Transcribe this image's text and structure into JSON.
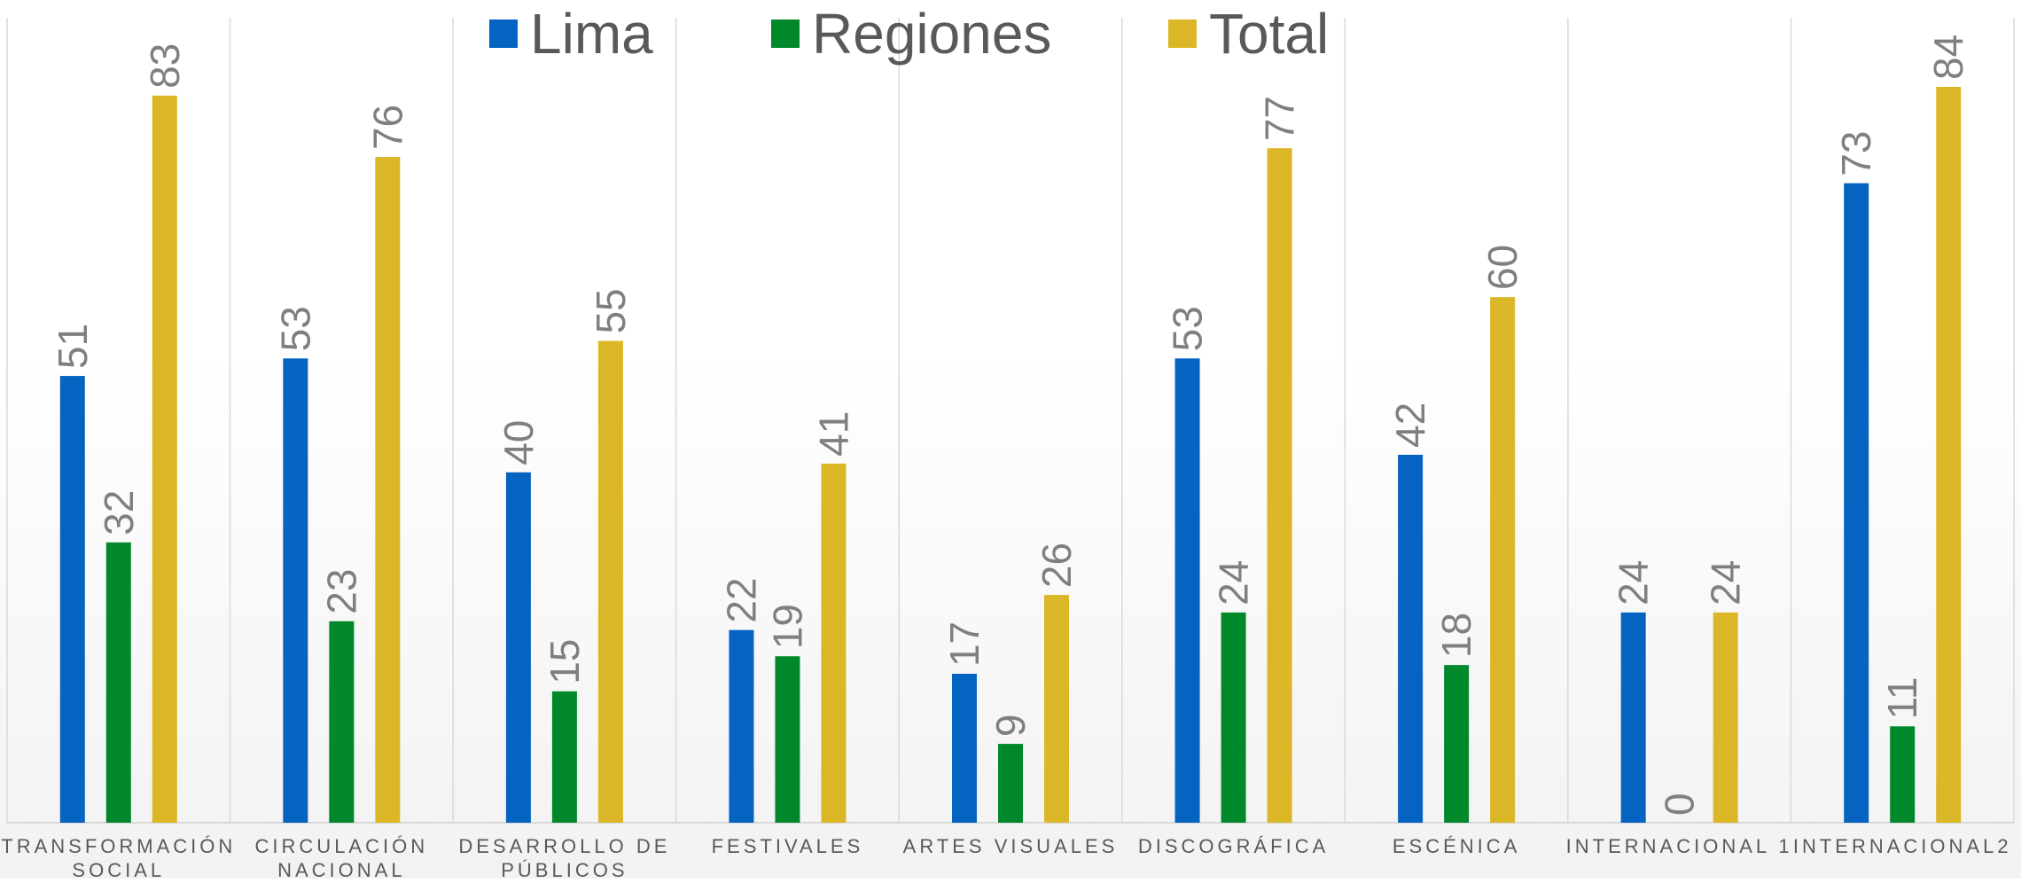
{
  "chart_data": {
    "type": "bar",
    "categories": [
      [
        "TRANSFORMACIÓN",
        "SOCIAL"
      ],
      [
        "CIRCULACIÓN",
        "NACIONAL"
      ],
      [
        "DESARROLLO DE",
        "PÚBLICOS"
      ],
      [
        "FESTIVALES"
      ],
      [
        "ARTES VISUALES"
      ],
      [
        "DISCOGRÁFICA"
      ],
      [
        "ESCÉNICA"
      ],
      [
        "INTERNACIONAL 1"
      ],
      [
        "INTERNACIONAL2"
      ]
    ],
    "series": [
      {
        "name": "Lima",
        "color": "#0563c1",
        "values": [
          51,
          53,
          40,
          22,
          17,
          53,
          42,
          24,
          73
        ]
      },
      {
        "name": "Regiones",
        "color": "#00882b",
        "values": [
          32,
          23,
          15,
          19,
          9,
          24,
          18,
          0,
          11
        ]
      },
      {
        "name": "Total",
        "color": "#dbb727",
        "values": [
          83,
          76,
          55,
          41,
          26,
          77,
          60,
          24,
          84
        ]
      }
    ],
    "ylim": [
      0,
      91
    ],
    "legend_position": "top",
    "grid": "vertical category separators",
    "data_labels": "rotated, above bars",
    "colors": {
      "gridline": "#d9d9d9",
      "axis": "#d9d9d9",
      "label_text": "#7f7f7f",
      "tick_text": "#595959",
      "legend_text": "#595959"
    }
  }
}
